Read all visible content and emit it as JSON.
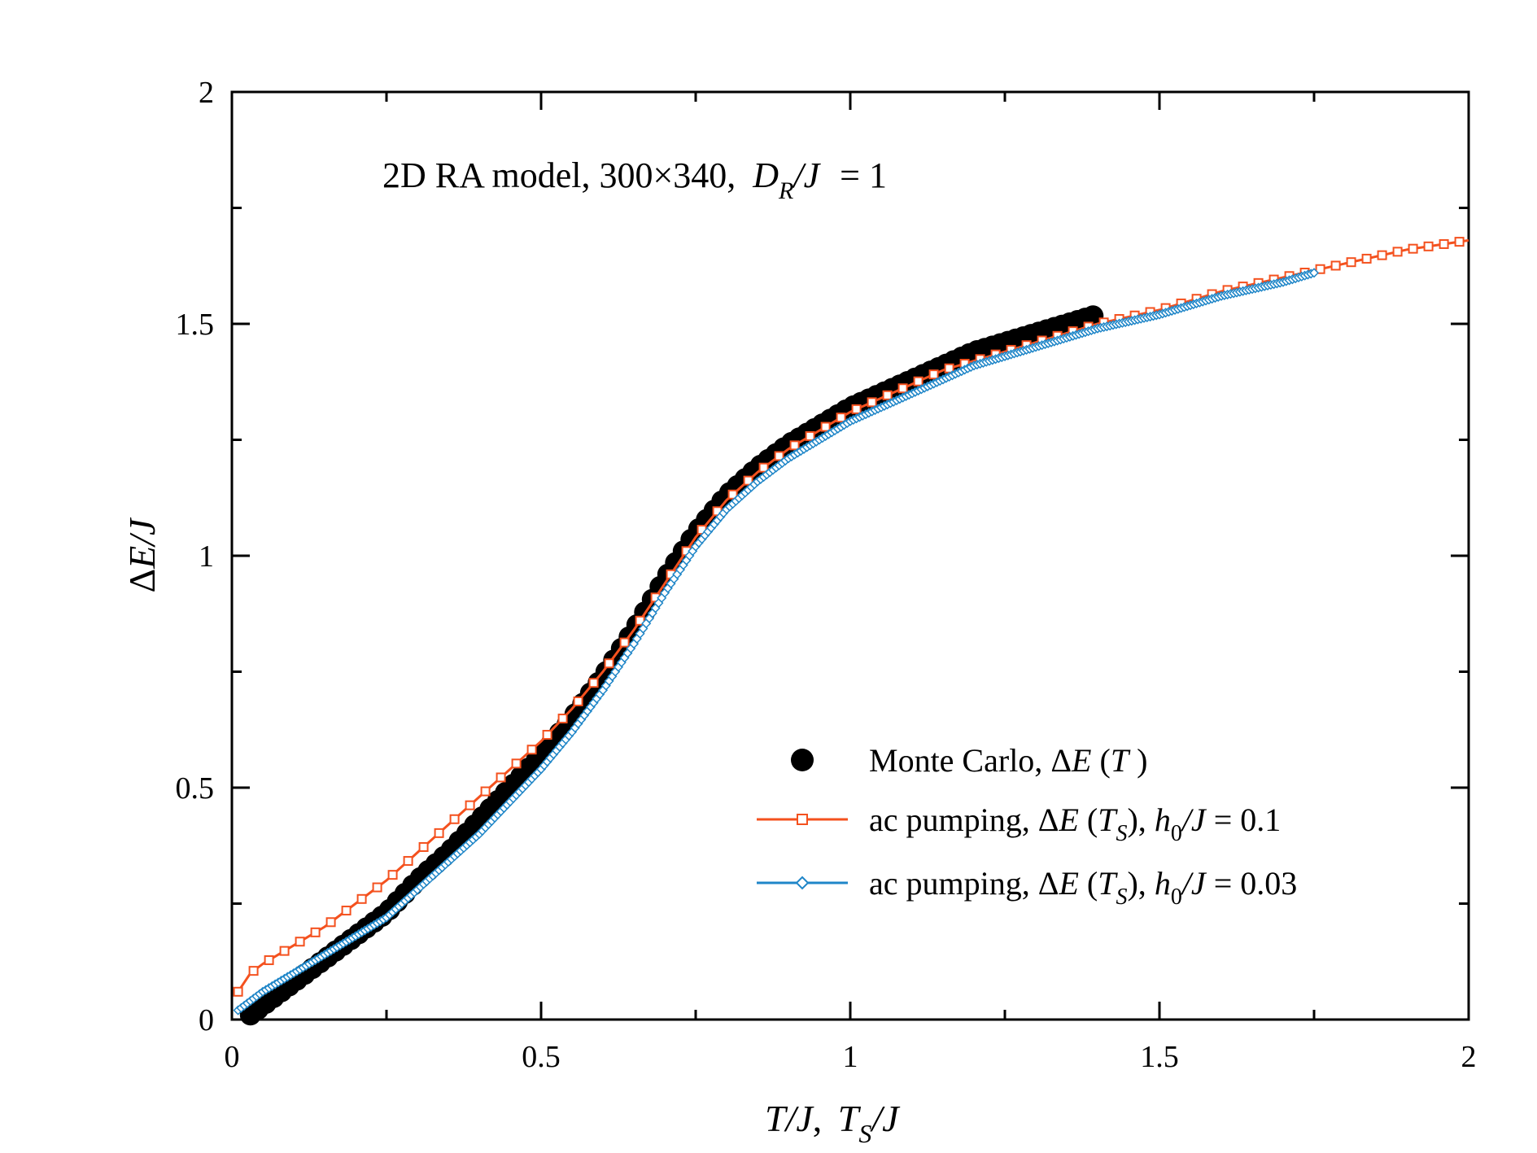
{
  "chart_data": {
    "type": "line",
    "annotation": {
      "prefix": "2D RA model, 300×340",
      "sep": ",",
      "var_main": "D",
      "var_sub": "R",
      "var_rest": "/J",
      "eq": "= 1"
    },
    "xlabel": {
      "a": "T/J",
      "comma": ",",
      "b": "T",
      "b_sub": "S",
      "c": "/J"
    },
    "ylabel": {
      "delta": "Δ",
      "var": "E/J"
    },
    "xlim": [
      0,
      2
    ],
    "ylim": [
      0,
      2
    ],
    "xticks": [
      {
        "v": 0,
        "label": "0"
      },
      {
        "v": 0.5,
        "label": "0.5"
      },
      {
        "v": 1,
        "label": "1"
      },
      {
        "v": 1.5,
        "label": "1.5"
      },
      {
        "v": 2,
        "label": "2"
      }
    ],
    "yticks": [
      {
        "v": 0,
        "label": "0"
      },
      {
        "v": 0.5,
        "label": "0.5"
      },
      {
        "v": 1,
        "label": "1"
      },
      {
        "v": 1.5,
        "label": "1.5"
      },
      {
        "v": 2,
        "label": "2"
      }
    ],
    "minor_step": 0.25,
    "series": [
      {
        "name": "Monte Carlo",
        "style": "dots",
        "color": "#000000",
        "x": [
          0.03,
          0.05,
          0.08,
          0.11,
          0.14,
          0.17,
          0.2,
          0.25,
          0.3,
          0.35,
          0.4,
          0.45,
          0.5,
          0.55,
          0.6,
          0.65,
          0.7,
          0.75,
          0.8,
          0.85,
          0.9,
          0.95,
          1.0,
          1.05,
          1.1,
          1.15,
          1.2,
          1.25,
          1.3,
          1.35,
          1.4
        ],
        "y": [
          0.01,
          0.03,
          0.06,
          0.09,
          0.12,
          0.15,
          0.18,
          0.23,
          0.3,
          0.36,
          0.43,
          0.5,
          0.57,
          0.65,
          0.74,
          0.84,
          0.95,
          1.05,
          1.13,
          1.19,
          1.24,
          1.28,
          1.32,
          1.35,
          1.38,
          1.41,
          1.44,
          1.46,
          1.48,
          1.5,
          1.52
        ],
        "legend": {
          "main": "Monte Carlo, ",
          "delta": "Δ",
          "v1": "E",
          "paren_open": " (",
          "v2": "T",
          "paren_close": " )"
        }
      },
      {
        "name": "ac pumping h0/J=0.1",
        "style": "line-squares",
        "color": "#f4511e",
        "x": [
          0.01,
          0.03,
          0.05,
          0.1,
          0.15,
          0.2,
          0.25,
          0.3,
          0.35,
          0.4,
          0.45,
          0.5,
          0.55,
          0.6,
          0.65,
          0.7,
          0.75,
          0.8,
          0.85,
          0.9,
          0.95,
          1.0,
          1.05,
          1.1,
          1.15,
          1.2,
          1.25,
          1.3,
          1.35,
          1.4,
          1.5,
          1.6,
          1.7,
          1.8,
          1.9,
          2.0
        ],
        "y": [
          0.06,
          0.1,
          0.12,
          0.16,
          0.2,
          0.25,
          0.3,
          0.36,
          0.42,
          0.48,
          0.54,
          0.6,
          0.67,
          0.75,
          0.84,
          0.94,
          1.04,
          1.12,
          1.18,
          1.23,
          1.27,
          1.31,
          1.34,
          1.37,
          1.4,
          1.42,
          1.44,
          1.46,
          1.48,
          1.5,
          1.53,
          1.57,
          1.6,
          1.63,
          1.66,
          1.68
        ],
        "legend": {
          "main": "ac pumping, ",
          "delta": "Δ",
          "v1": "E",
          "paren_open": " (",
          "v2": "T",
          "v2_sub": "S",
          "paren_close": "), ",
          "h": "h",
          "h_sub": "0",
          "h_rest": "/J",
          "eq": " = 0.1"
        }
      },
      {
        "name": "ac pumping h0/J=0.03",
        "style": "line-diamonds",
        "color": "#1f86c8",
        "x": [
          0.01,
          0.03,
          0.05,
          0.1,
          0.15,
          0.2,
          0.25,
          0.3,
          0.35,
          0.4,
          0.45,
          0.5,
          0.55,
          0.6,
          0.65,
          0.7,
          0.75,
          0.8,
          0.85,
          0.9,
          0.95,
          1.0,
          1.05,
          1.1,
          1.15,
          1.2,
          1.25,
          1.3,
          1.35,
          1.4,
          1.5,
          1.6,
          1.7,
          1.75
        ],
        "y": [
          0.02,
          0.04,
          0.06,
          0.1,
          0.14,
          0.18,
          0.22,
          0.28,
          0.34,
          0.4,
          0.47,
          0.54,
          0.62,
          0.71,
          0.81,
          0.92,
          1.02,
          1.1,
          1.16,
          1.21,
          1.25,
          1.29,
          1.32,
          1.35,
          1.38,
          1.41,
          1.43,
          1.45,
          1.47,
          1.49,
          1.52,
          1.56,
          1.59,
          1.61
        ],
        "legend": {
          "main": "ac pumping, ",
          "delta": "Δ",
          "v1": "E",
          "paren_open": " (",
          "v2": "T",
          "v2_sub": "S",
          "paren_close": "), ",
          "h": "h",
          "h_sub": "0",
          "h_rest": "/J",
          "eq": " = 0.03"
        }
      }
    ]
  }
}
